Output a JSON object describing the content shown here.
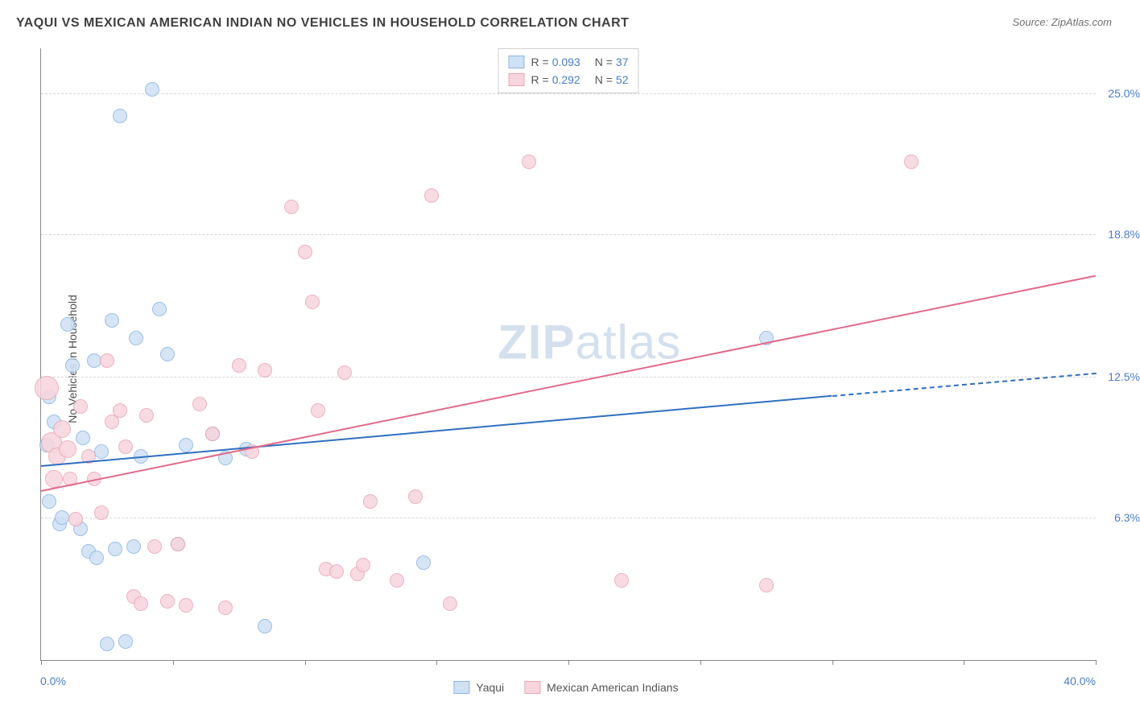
{
  "title": "YAQUI VS MEXICAN AMERICAN INDIAN NO VEHICLES IN HOUSEHOLD CORRELATION CHART",
  "source": "Source: ZipAtlas.com",
  "watermark_bold": "ZIP",
  "watermark_light": "atlas",
  "chart": {
    "type": "scatter",
    "y_label": "No Vehicles in Household",
    "x_min": 0.0,
    "x_max": 40.0,
    "y_min": 0.0,
    "y_max": 27.0,
    "x_min_label": "0.0%",
    "x_max_label": "40.0%",
    "y_ticks": [
      6.3,
      12.5,
      18.8,
      25.0
    ],
    "y_tick_labels": [
      "6.3%",
      "12.5%",
      "18.8%",
      "25.0%"
    ],
    "x_tick_positions": [
      0,
      5,
      10,
      15,
      20,
      25,
      30,
      35,
      40
    ],
    "background_color": "#ffffff",
    "grid_color": "#d8d8d8",
    "axis_color": "#888888",
    "label_color": "#505050",
    "tick_label_color": "#4a7ec9",
    "title_color": "#404040",
    "title_fontsize": 16,
    "label_fontsize": 14
  },
  "series": [
    {
      "name": "Yaqui",
      "fill": "#cfe1f5",
      "stroke": "#8bb5e3",
      "trend_color": "#2f6fc1",
      "r_label": "R =",
      "r_value": "0.093",
      "n_label": "N =",
      "n_value": "37",
      "trend": {
        "x1": 0,
        "y1": 8.6,
        "x2": 30,
        "y2": 11.7,
        "dash_to_x": 40,
        "dash_to_y": 12.7
      },
      "marker_radius": 8,
      "points": [
        {
          "x": 0.2,
          "y": 9.5,
          "r": 8
        },
        {
          "x": 0.3,
          "y": 11.6,
          "r": 8
        },
        {
          "x": 0.3,
          "y": 7.0,
          "r": 8
        },
        {
          "x": 0.5,
          "y": 10.5,
          "r": 8
        },
        {
          "x": 0.7,
          "y": 6.0,
          "r": 8
        },
        {
          "x": 0.8,
          "y": 6.3,
          "r": 8
        },
        {
          "x": 1.0,
          "y": 14.8,
          "r": 8
        },
        {
          "x": 1.2,
          "y": 13.0,
          "r": 8
        },
        {
          "x": 1.5,
          "y": 5.8,
          "r": 8
        },
        {
          "x": 1.6,
          "y": 9.8,
          "r": 8
        },
        {
          "x": 1.8,
          "y": 4.8,
          "r": 8
        },
        {
          "x": 2.0,
          "y": 13.2,
          "r": 8
        },
        {
          "x": 2.1,
          "y": 4.5,
          "r": 8
        },
        {
          "x": 2.3,
          "y": 9.2,
          "r": 8
        },
        {
          "x": 2.5,
          "y": 0.7,
          "r": 8
        },
        {
          "x": 2.7,
          "y": 15.0,
          "r": 8
        },
        {
          "x": 2.8,
          "y": 4.9,
          "r": 8
        },
        {
          "x": 3.0,
          "y": 24.0,
          "r": 8
        },
        {
          "x": 3.2,
          "y": 0.8,
          "r": 8
        },
        {
          "x": 3.5,
          "y": 5.0,
          "r": 8
        },
        {
          "x": 3.6,
          "y": 14.2,
          "r": 8
        },
        {
          "x": 3.8,
          "y": 9.0,
          "r": 8
        },
        {
          "x": 4.2,
          "y": 25.2,
          "r": 8
        },
        {
          "x": 4.5,
          "y": 15.5,
          "r": 8
        },
        {
          "x": 4.8,
          "y": 13.5,
          "r": 8
        },
        {
          "x": 5.2,
          "y": 5.1,
          "r": 8
        },
        {
          "x": 5.5,
          "y": 9.5,
          "r": 8
        },
        {
          "x": 6.5,
          "y": 10.0,
          "r": 8
        },
        {
          "x": 7.0,
          "y": 8.9,
          "r": 8
        },
        {
          "x": 7.8,
          "y": 9.3,
          "r": 8
        },
        {
          "x": 8.5,
          "y": 1.5,
          "r": 8
        },
        {
          "x": 14.5,
          "y": 4.3,
          "r": 8
        },
        {
          "x": 27.5,
          "y": 14.2,
          "r": 8
        }
      ]
    },
    {
      "name": "Mexican American Indians",
      "fill": "#f7d5dd",
      "stroke": "#e9a5b6",
      "trend_color": "#e26a8a",
      "r_label": "R =",
      "r_value": "0.292",
      "n_label": "N =",
      "n_value": "52",
      "trend": {
        "x1": 0,
        "y1": 7.5,
        "x2": 40,
        "y2": 17.0
      },
      "marker_radius": 8,
      "points": [
        {
          "x": 0.2,
          "y": 12.0,
          "r": 14
        },
        {
          "x": 0.4,
          "y": 9.6,
          "r": 12
        },
        {
          "x": 0.5,
          "y": 8.0,
          "r": 10
        },
        {
          "x": 0.6,
          "y": 9.0,
          "r": 10
        },
        {
          "x": 0.8,
          "y": 10.2,
          "r": 10
        },
        {
          "x": 1.0,
          "y": 9.3,
          "r": 10
        },
        {
          "x": 1.1,
          "y": 8.0,
          "r": 8
        },
        {
          "x": 1.3,
          "y": 6.2,
          "r": 8
        },
        {
          "x": 1.5,
          "y": 11.2,
          "r": 8
        },
        {
          "x": 1.8,
          "y": 9.0,
          "r": 8
        },
        {
          "x": 2.0,
          "y": 8.0,
          "r": 8
        },
        {
          "x": 2.3,
          "y": 6.5,
          "r": 8
        },
        {
          "x": 2.5,
          "y": 13.2,
          "r": 8
        },
        {
          "x": 2.7,
          "y": 10.5,
          "r": 8
        },
        {
          "x": 3.0,
          "y": 11.0,
          "r": 8
        },
        {
          "x": 3.2,
          "y": 9.4,
          "r": 8
        },
        {
          "x": 3.5,
          "y": 2.8,
          "r": 8
        },
        {
          "x": 3.8,
          "y": 2.5,
          "r": 8
        },
        {
          "x": 4.0,
          "y": 10.8,
          "r": 8
        },
        {
          "x": 4.3,
          "y": 5.0,
          "r": 8
        },
        {
          "x": 4.8,
          "y": 2.6,
          "r": 8
        },
        {
          "x": 5.2,
          "y": 5.1,
          "r": 8
        },
        {
          "x": 5.5,
          "y": 2.4,
          "r": 8
        },
        {
          "x": 6.0,
          "y": 11.3,
          "r": 8
        },
        {
          "x": 6.5,
          "y": 10.0,
          "r": 8
        },
        {
          "x": 7.0,
          "y": 2.3,
          "r": 8
        },
        {
          "x": 7.5,
          "y": 13.0,
          "r": 8
        },
        {
          "x": 8.0,
          "y": 9.2,
          "r": 8
        },
        {
          "x": 8.5,
          "y": 12.8,
          "r": 8
        },
        {
          "x": 9.5,
          "y": 20.0,
          "r": 8
        },
        {
          "x": 10.0,
          "y": 18.0,
          "r": 8
        },
        {
          "x": 10.3,
          "y": 15.8,
          "r": 8
        },
        {
          "x": 10.5,
          "y": 11.0,
          "r": 8
        },
        {
          "x": 10.8,
          "y": 4.0,
          "r": 8
        },
        {
          "x": 11.2,
          "y": 3.9,
          "r": 8
        },
        {
          "x": 11.5,
          "y": 12.7,
          "r": 8
        },
        {
          "x": 12.0,
          "y": 3.8,
          "r": 8
        },
        {
          "x": 12.2,
          "y": 4.2,
          "r": 8
        },
        {
          "x": 12.5,
          "y": 7.0,
          "r": 8
        },
        {
          "x": 13.5,
          "y": 3.5,
          "r": 8
        },
        {
          "x": 14.2,
          "y": 7.2,
          "r": 8
        },
        {
          "x": 14.8,
          "y": 20.5,
          "r": 8
        },
        {
          "x": 15.5,
          "y": 2.5,
          "r": 8
        },
        {
          "x": 18.5,
          "y": 22.0,
          "r": 8
        },
        {
          "x": 22.0,
          "y": 3.5,
          "r": 8
        },
        {
          "x": 27.5,
          "y": 3.3,
          "r": 8
        },
        {
          "x": 33.0,
          "y": 22.0,
          "r": 8
        }
      ]
    }
  ],
  "legend_bottom": [
    {
      "label": "Yaqui",
      "fill": "#cfe1f5",
      "stroke": "#8bb5e3"
    },
    {
      "label": "Mexican American Indians",
      "fill": "#f7d5dd",
      "stroke": "#e9a5b6"
    }
  ]
}
